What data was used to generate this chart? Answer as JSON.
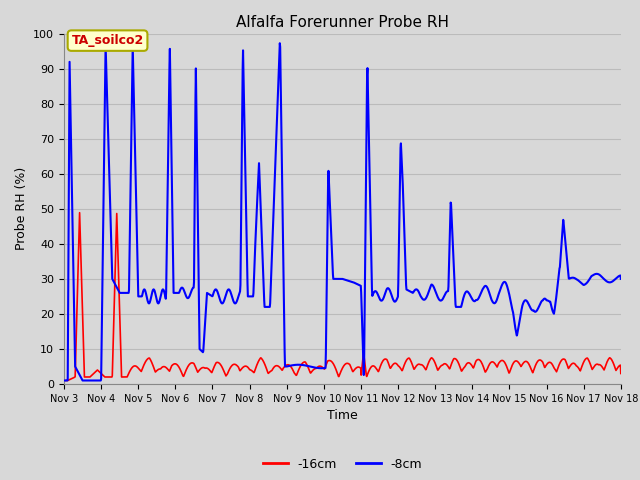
{
  "title": "Alfalfa Forerunner Probe RH",
  "xlabel": "Time",
  "ylabel": "Probe RH (%)",
  "ylim": [
    0,
    100
  ],
  "background_color": "#d8d8d8",
  "plot_bg_color": "#d8d8d8",
  "annotation_text": "TA_soilco2",
  "annotation_color": "#cc0000",
  "annotation_bg": "#ffffcc",
  "annotation_edge": "#aaaa00",
  "legend_labels": [
    "-16cm",
    "-8cm"
  ],
  "legend_colors": [
    "#ff0000",
    "#0000ff"
  ],
  "grid_color": "#bbbbbb",
  "line_color_red": "#ff0000",
  "line_color_blue": "#0000ff",
  "xtick_labels": [
    "Nov 3",
    "Nov 4",
    "Nov 5",
    "Nov 6",
    "Nov 7",
    "Nov 8",
    "Nov 9",
    "Nov 10",
    "Nov 11",
    "Nov 12",
    "Nov 13",
    "Nov 14",
    "Nov 15",
    "Nov 16",
    "Nov 17",
    "Nov 18"
  ],
  "xtick_positions": [
    3,
    4,
    5,
    6,
    7,
    8,
    9,
    10,
    11,
    12,
    13,
    14,
    15,
    16,
    17,
    18
  ],
  "ytick_labels": [
    "0",
    "10",
    "20",
    "30",
    "40",
    "50",
    "60",
    "70",
    "80",
    "90",
    "100"
  ],
  "ytick_positions": [
    0,
    10,
    20,
    30,
    40,
    50,
    60,
    70,
    80,
    90,
    100
  ],
  "figsize": [
    6.4,
    4.8
  ],
  "dpi": 100
}
